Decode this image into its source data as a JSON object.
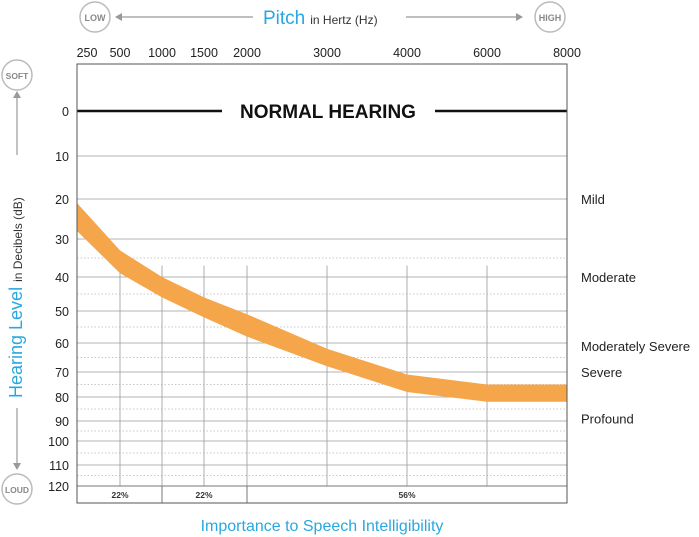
{
  "chart_data": {
    "type": "area",
    "x_title_main": "Pitch",
    "x_title_sub": "in Hertz (Hz)",
    "low_label": "LOW",
    "high_label": "HIGH",
    "y_title_main": "Hearing Level",
    "y_title_sub": "in Decibels (dB)",
    "soft_label": "SOFT",
    "loud_label": "LOUD",
    "frequencies": [
      "250",
      "500",
      "1000",
      "1500",
      "2000",
      "3000",
      "4000",
      "6000",
      "8000"
    ],
    "y_ticks": [
      "0",
      "10",
      "20",
      "30",
      "40",
      "50",
      "60",
      "70",
      "80",
      "90",
      "100",
      "110",
      "120"
    ],
    "ylim": [
      0,
      120
    ],
    "normal_hearing_label": "NORMAL HEARING",
    "band": {
      "color": "#f5a54a",
      "upper_db": [
        21,
        33,
        40,
        46,
        51,
        62,
        71,
        75,
        75
      ],
      "lower_db": [
        28,
        39,
        46,
        52,
        58,
        68,
        78,
        82,
        82
      ]
    },
    "severity_labels": [
      {
        "label": "Mild",
        "db": 20
      },
      {
        "label": "Moderate",
        "db": 40
      },
      {
        "label": "Moderately Severe",
        "db": 61
      },
      {
        "label": "Severe",
        "db": 70
      },
      {
        "label": "Profound",
        "db": 89
      }
    ],
    "speech_importance": [
      "22%",
      "22%",
      "56%"
    ],
    "footer_label": "Importance to Speech Intelligibility",
    "accent_color": "#29a8e0"
  }
}
